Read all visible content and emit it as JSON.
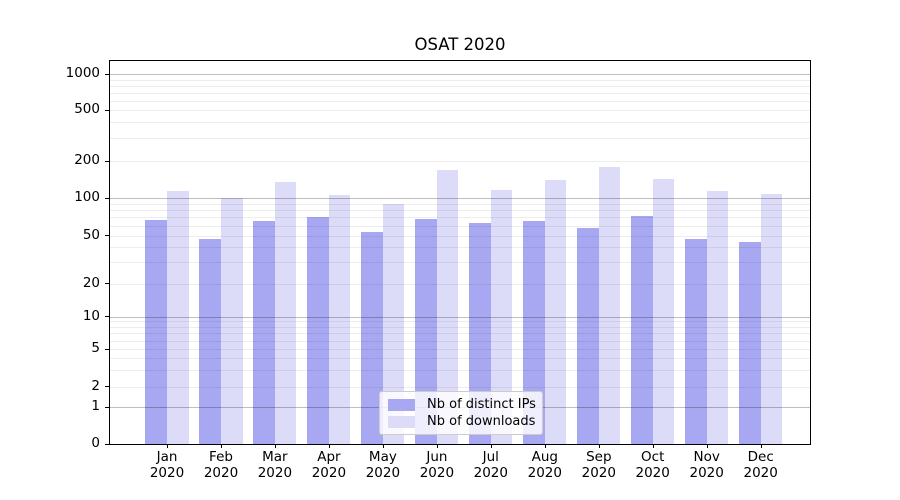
{
  "chart_data": {
    "type": "bar",
    "title": "OSAT 2020",
    "categories": [
      "Jan 2020",
      "Feb 2020",
      "Mar 2020",
      "Apr 2020",
      "May 2020",
      "Jun 2020",
      "Jul 2020",
      "Aug 2020",
      "Sep 2020",
      "Oct 2020",
      "Nov 2020",
      "Dec 2020"
    ],
    "x_tick_lines": [
      {
        "month": "Jan",
        "year": "2020"
      },
      {
        "month": "Feb",
        "year": "2020"
      },
      {
        "month": "Mar",
        "year": "2020"
      },
      {
        "month": "Apr",
        "year": "2020"
      },
      {
        "month": "May",
        "year": "2020"
      },
      {
        "month": "Jun",
        "year": "2020"
      },
      {
        "month": "Jul",
        "year": "2020"
      },
      {
        "month": "Aug",
        "year": "2020"
      },
      {
        "month": "Sep",
        "year": "2020"
      },
      {
        "month": "Oct",
        "year": "2020"
      },
      {
        "month": "Nov",
        "year": "2020"
      },
      {
        "month": "Dec",
        "year": "2020"
      }
    ],
    "series": [
      {
        "name": "Nb of distinct IPs",
        "key": "distinct-ips",
        "color": "#a8a8f2",
        "values": [
          67,
          47,
          65,
          70,
          53,
          68,
          63,
          65,
          58,
          72,
          47,
          44
        ]
      },
      {
        "name": "Nb of downloads",
        "key": "downloads",
        "color": "#dcdcf9",
        "values": [
          115,
          101,
          135,
          106,
          89,
          169,
          117,
          139,
          180,
          144,
          114,
          108
        ]
      }
    ],
    "yscale": "symlog",
    "ytick_labels": [
      "1000",
      "500",
      "200",
      "100",
      "50",
      "20",
      "10",
      "5",
      "2",
      "1",
      "0"
    ],
    "ytick_values": [
      1000,
      500,
      200,
      100,
      50,
      20,
      10,
      5,
      2,
      1,
      0
    ],
    "ylim": [
      0,
      1300
    ],
    "grid": "horizontal, major and minor, drawn above bars",
    "legend_position": "lower center"
  }
}
